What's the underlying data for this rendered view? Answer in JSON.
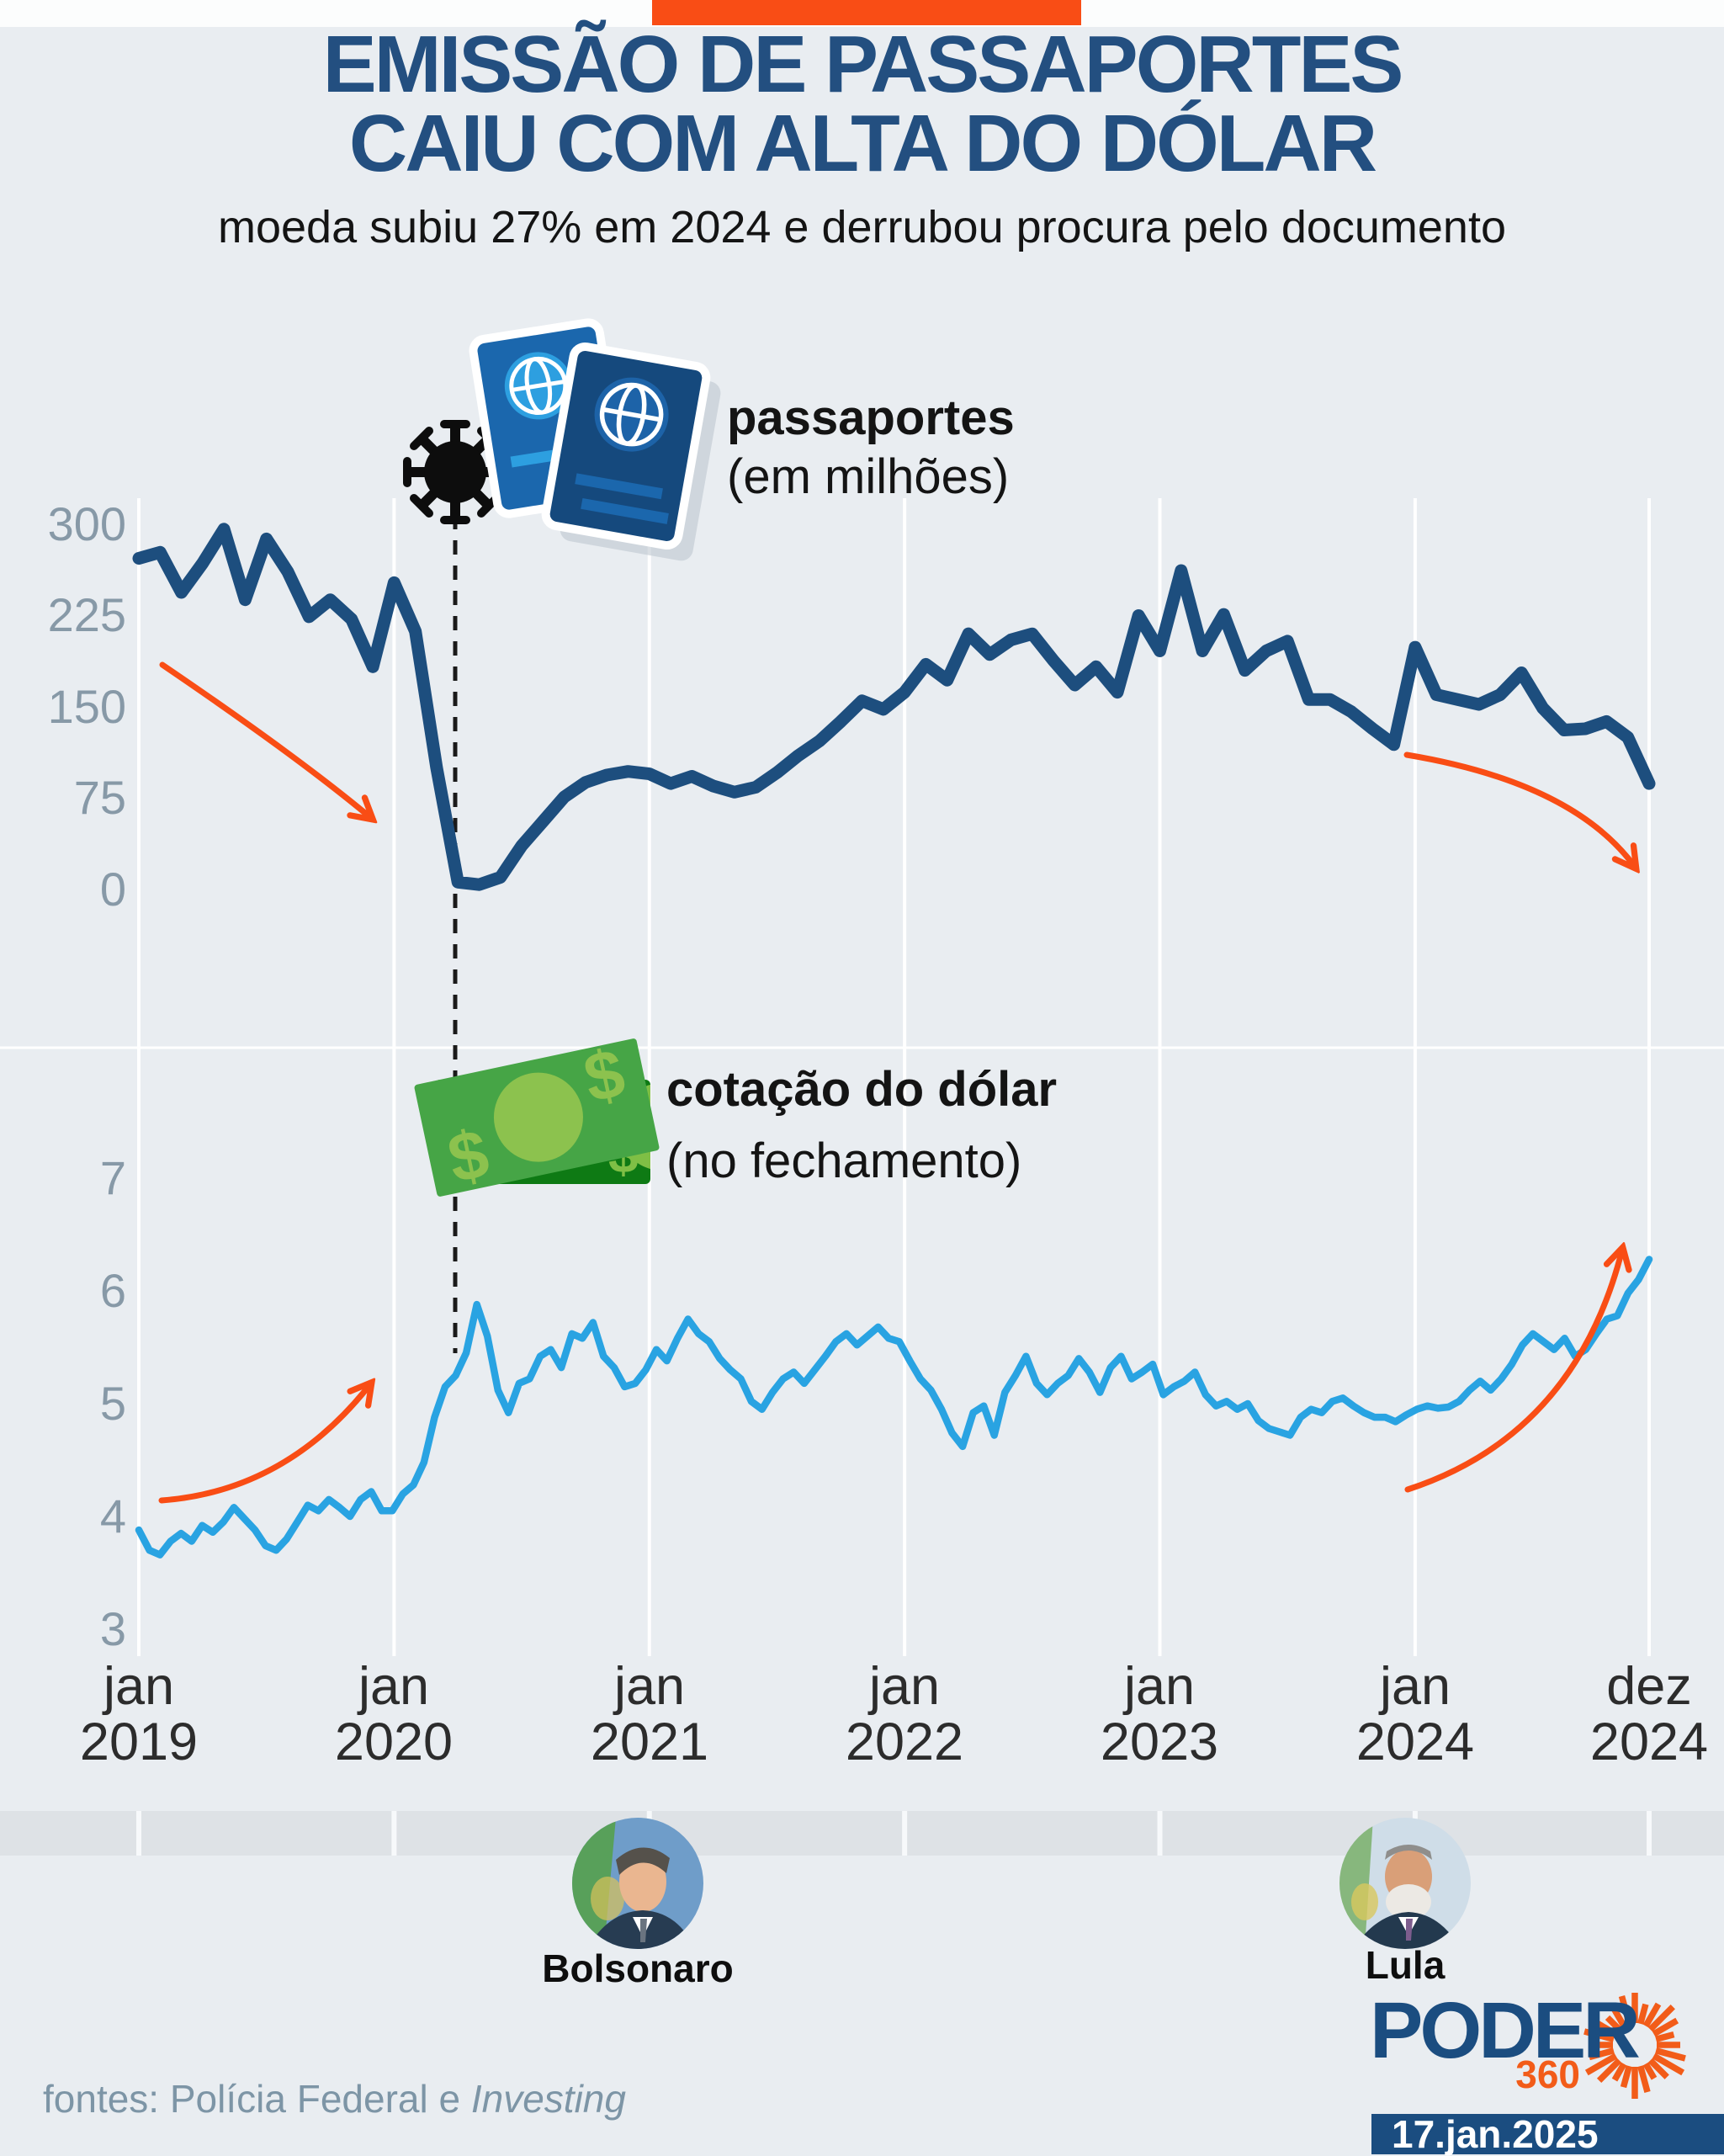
{
  "page": {
    "background": "#e9edf1",
    "accent_orange": "#f94d15",
    "navy": "#1d4e7e",
    "sky_blue": "#29a3e2",
    "band_gray": "#dee2e6"
  },
  "header": {
    "title_line1": "EMISSÃO DE PASSAPORTES",
    "title_line2": "CAIU COM ALTA DO DÓLAR",
    "subtitle": "moeda subiu 27% em 2024 e derrubou procura pelo documento"
  },
  "chart_data": [
    {
      "type": "line",
      "id": "passaportes",
      "legend_title": "passaportes",
      "legend_subtitle": "(em milhões)",
      "color": "#1d4e7e",
      "x_start": "jan 2019",
      "x_end": "dez 2024",
      "points_per_year": 12,
      "ylim": [
        0,
        300
      ],
      "yticks": [
        "300",
        "225",
        "150",
        "75",
        "0"
      ],
      "grid": "vertical-yearly",
      "values": [
        272,
        277,
        244,
        268,
        296,
        238,
        288,
        261,
        224,
        238,
        222,
        183,
        252,
        212,
        100,
        6,
        4,
        10,
        36,
        56,
        76,
        88,
        94,
        97,
        95,
        87,
        93,
        85,
        80,
        84,
        96,
        110,
        122,
        138,
        155,
        148,
        162,
        185,
        172,
        210,
        193,
        205,
        210,
        188,
        168,
        183,
        162,
        225,
        196,
        262,
        196,
        226,
        180,
        196,
        204,
        156,
        156,
        146,
        132,
        119,
        199,
        160,
        156,
        152,
        160,
        178,
        149,
        131,
        132,
        138,
        125,
        87
      ]
    },
    {
      "type": "line",
      "id": "cotacao_dolar",
      "legend_title": "cotação do dólar",
      "legend_subtitle": "(no fechamento)",
      "color": "#29a3e2",
      "x_start": "jan 2019",
      "x_end": "dez 2024",
      "points_per_year": 24,
      "ylim": [
        3,
        7
      ],
      "yticks": [
        "7",
        "6",
        "5",
        "4",
        "3"
      ],
      "grid": "vertical-yearly",
      "values": [
        3.88,
        3.7,
        3.66,
        3.78,
        3.85,
        3.78,
        3.92,
        3.86,
        3.95,
        4.08,
        3.98,
        3.88,
        3.74,
        3.7,
        3.8,
        3.95,
        4.1,
        4.05,
        4.15,
        4.08,
        4.0,
        4.15,
        4.22,
        4.05,
        4.05,
        4.2,
        4.28,
        4.48,
        4.88,
        5.15,
        5.25,
        5.45,
        5.88,
        5.6,
        5.12,
        4.92,
        5.18,
        5.22,
        5.42,
        5.48,
        5.32,
        5.62,
        5.58,
        5.72,
        5.42,
        5.32,
        5.15,
        5.18,
        5.3,
        5.48,
        5.38,
        5.58,
        5.75,
        5.62,
        5.55,
        5.4,
        5.3,
        5.22,
        5.02,
        4.95,
        5.1,
        5.22,
        5.28,
        5.18,
        5.3,
        5.42,
        5.55,
        5.62,
        5.52,
        5.6,
        5.68,
        5.58,
        5.55,
        5.38,
        5.22,
        5.12,
        4.95,
        4.74,
        4.62,
        4.92,
        4.98,
        4.72,
        5.1,
        5.25,
        5.42,
        5.18,
        5.08,
        5.18,
        5.25,
        5.4,
        5.28,
        5.1,
        5.32,
        5.42,
        5.22,
        5.28,
        5.35,
        5.08,
        5.15,
        5.2,
        5.28,
        5.08,
        4.98,
        5.02,
        4.95,
        5.0,
        4.85,
        4.78,
        4.75,
        4.72,
        4.88,
        4.95,
        4.92,
        5.02,
        5.05,
        4.98,
        4.92,
        4.88,
        4.88,
        4.84,
        4.9,
        4.95,
        4.98,
        4.96,
        4.97,
        5.02,
        5.12,
        5.2,
        5.12,
        5.22,
        5.35,
        5.52,
        5.62,
        5.55,
        5.48,
        5.58,
        5.42,
        5.48,
        5.62,
        5.75,
        5.78,
        5.98,
        6.1,
        6.28
      ]
    }
  ],
  "xticks": [
    {
      "month": "jan",
      "year": "2019"
    },
    {
      "month": "jan",
      "year": "2020"
    },
    {
      "month": "jan",
      "year": "2021"
    },
    {
      "month": "jan",
      "year": "2022"
    },
    {
      "month": "jan",
      "year": "2023"
    },
    {
      "month": "jan",
      "year": "2024"
    },
    {
      "month": "dez",
      "year": "2024"
    }
  ],
  "icons": {
    "covid": "covid-virus-icon",
    "passports": "passport-books-icon",
    "money": "dollar-bills-icon",
    "logo_sunburst": "sunburst-icon"
  },
  "people": [
    {
      "name": "Bolsonaro"
    },
    {
      "name": "Lula"
    }
  ],
  "logo": {
    "brand": "PODER",
    "brand_suffix": "360"
  },
  "footer": {
    "sources_prefix": "fontes: Polícia Federal e ",
    "sources_italic": "Investing",
    "date": "17.jan.2025"
  }
}
